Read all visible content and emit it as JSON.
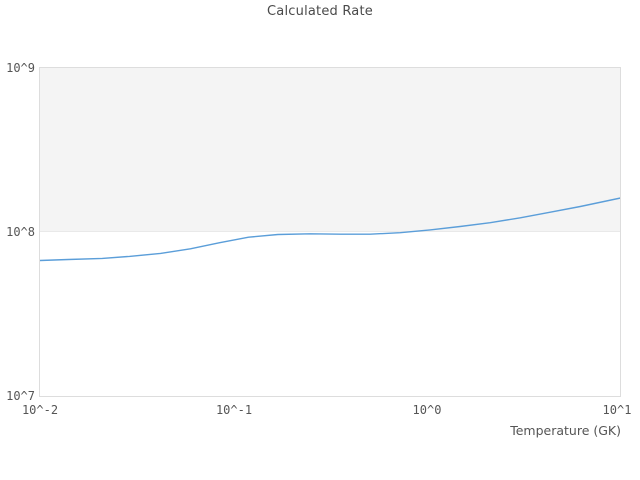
{
  "title": "Calculated Rate",
  "axes": {
    "x_label": "Temperature (GK)",
    "x_ticks": [
      "10^-2",
      "10^-1",
      "10^0",
      "10^1"
    ],
    "y_ticks": [
      "10^9",
      "10^8",
      "10^7"
    ]
  },
  "colors": {
    "line": "#5b9ed9",
    "band": "#f4f4f4",
    "plot_border": "#dddddd",
    "text": "#555555",
    "title_text": "#4a4a4a"
  },
  "chart_data": {
    "type": "line",
    "title": "Calculated Rate",
    "xlabel": "Temperature (GK)",
    "ylabel": "",
    "x_scale": "log",
    "y_scale": "log",
    "xlim": [
      0.01,
      10
    ],
    "ylim": [
      10000000,
      1000000000
    ],
    "x_tick_labels": [
      "10^-2",
      "10^-1",
      "10^0",
      "10^1"
    ],
    "y_tick_labels": [
      "10^7",
      "10^8",
      "10^9"
    ],
    "grid": "single horizontal boundary at 1e8; decade band 1e8-1e9 shaded light gray",
    "legend_position": "none",
    "series": [
      {
        "name": "calculated-rate",
        "x": [
          0.01,
          0.014,
          0.021,
          0.029,
          0.042,
          0.06,
          0.085,
          0.12,
          0.17,
          0.25,
          0.36,
          0.51,
          0.73,
          1.04,
          1.49,
          2.13,
          3.05,
          4.36,
          6.23,
          10.0
        ],
        "y": [
          67000000,
          68000000,
          69000000,
          71000000,
          74000000,
          79000000,
          86000000,
          93000000,
          96500000,
          97500000,
          97000000,
          97000000,
          99000000,
          103000000,
          108000000,
          114000000,
          122000000,
          132000000,
          143000000,
          161000000
        ]
      }
    ]
  }
}
